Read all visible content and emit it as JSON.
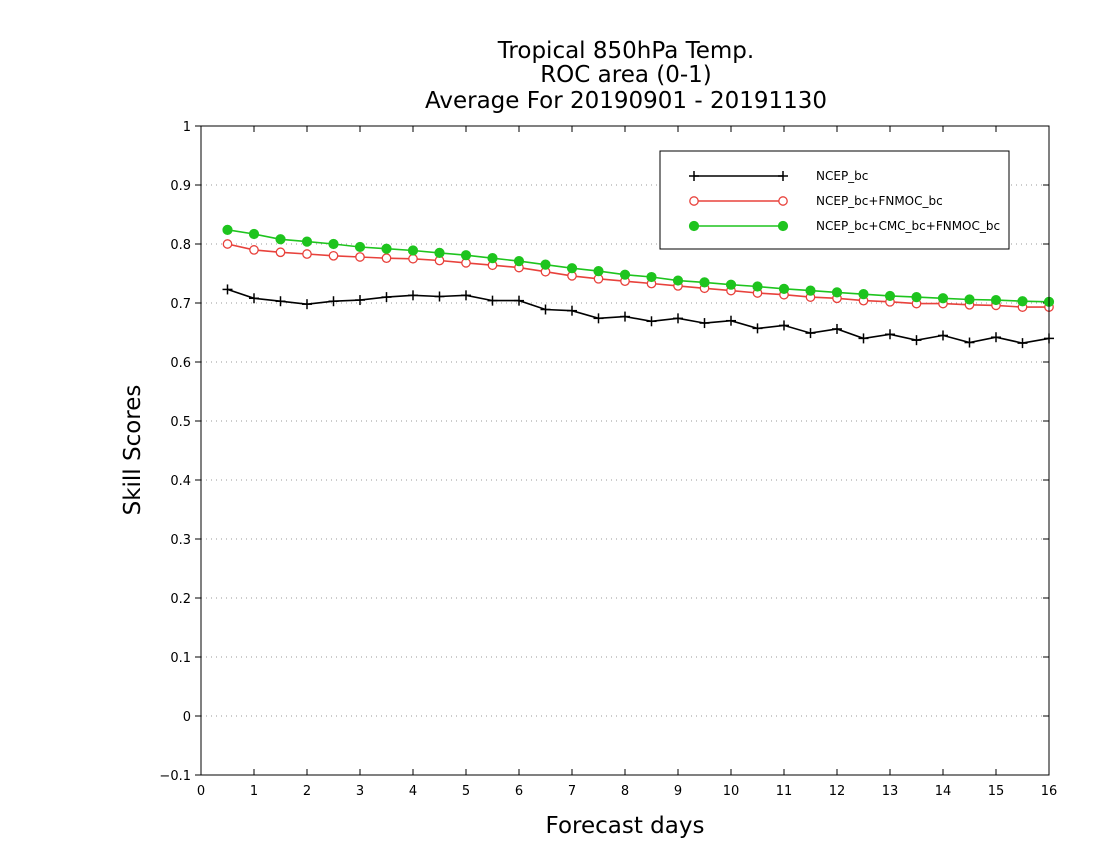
{
  "chart_data": {
    "type": "line",
    "title_lines": [
      "Tropical 850hPa Temp.",
      "ROC area (0-1)",
      "Average For 20190901 - 20191130"
    ],
    "xlabel": "Forecast days",
    "ylabel": "Skill Scores",
    "xlim": [
      0,
      16
    ],
    "ylim": [
      -0.1,
      1
    ],
    "x_ticks": [
      "0",
      "1",
      "2",
      "3",
      "4",
      "5",
      "6",
      "7",
      "8",
      "9",
      "10",
      "11",
      "12",
      "13",
      "14",
      "15",
      "16"
    ],
    "y_ticks": [
      "−0.1",
      "0",
      "0.1",
      "0.2",
      "0.3",
      "0.4",
      "0.5",
      "0.6",
      "0.7",
      "0.8",
      "0.9",
      "1"
    ],
    "grid": true,
    "legend_position": "top-right",
    "x": [
      0.5,
      1,
      1.5,
      2,
      2.5,
      3,
      3.5,
      4,
      4.5,
      5,
      5.5,
      6,
      6.5,
      7,
      7.5,
      8,
      8.5,
      9,
      9.5,
      10,
      10.5,
      11,
      11.5,
      12,
      12.5,
      13,
      13.5,
      14,
      14.5,
      15,
      15.5,
      16
    ],
    "series": [
      {
        "name": "NCEP_bc",
        "color": "#000000",
        "marker": "plus",
        "values": [
          0.723,
          0.708,
          0.703,
          0.698,
          0.703,
          0.705,
          0.71,
          0.713,
          0.711,
          0.713,
          0.704,
          0.704,
          0.689,
          0.687,
          0.674,
          0.677,
          0.669,
          0.674,
          0.666,
          0.67,
          0.657,
          0.662,
          0.649,
          0.656,
          0.64,
          0.647,
          0.637,
          0.645,
          0.633,
          0.642,
          0.632,
          0.64
        ]
      },
      {
        "name": "NCEP_bc+FNMOC_bc",
        "color": "#e8423c",
        "marker": "open-circle",
        "values": [
          0.8,
          0.79,
          0.786,
          0.783,
          0.78,
          0.778,
          0.776,
          0.775,
          0.772,
          0.768,
          0.764,
          0.76,
          0.753,
          0.746,
          0.741,
          0.737,
          0.733,
          0.729,
          0.725,
          0.721,
          0.717,
          0.714,
          0.71,
          0.708,
          0.704,
          0.702,
          0.699,
          0.699,
          0.697,
          0.696,
          0.693,
          0.693
        ]
      },
      {
        "name": "NCEP_bc+CMC_bc+FNMOC_bc",
        "color": "#1ec41e",
        "marker": "filled-circle",
        "values": [
          0.824,
          0.817,
          0.808,
          0.804,
          0.8,
          0.795,
          0.792,
          0.789,
          0.785,
          0.781,
          0.776,
          0.771,
          0.765,
          0.759,
          0.754,
          0.748,
          0.744,
          0.738,
          0.735,
          0.731,
          0.728,
          0.724,
          0.721,
          0.718,
          0.715,
          0.712,
          0.71,
          0.708,
          0.706,
          0.705,
          0.703,
          0.702
        ]
      }
    ]
  }
}
